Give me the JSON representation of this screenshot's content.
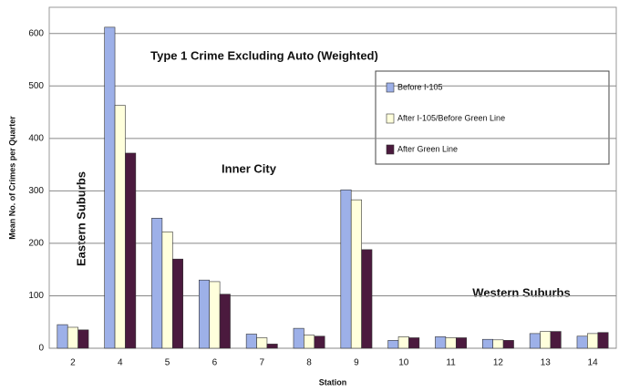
{
  "chart_data": {
    "type": "bar",
    "annotations": [
      "Type 1 Crime Excluding Auto (Weighted)",
      "Inner City",
      "Eastern Suburbs",
      "Western Suburbs"
    ],
    "x_label": "Station",
    "y_label": "Mean No. of Crimes per Quarter",
    "categories": [
      "2",
      "4",
      "5",
      "6",
      "7",
      "8",
      "9",
      "10",
      "11",
      "12",
      "13",
      "14"
    ],
    "series": [
      {
        "name": "Before I-105",
        "color": "#9db0e8",
        "values": [
          45,
          612,
          248,
          130,
          27,
          38,
          302,
          15,
          22,
          17,
          28,
          23
        ]
      },
      {
        "name": "After I-105/Before Green Line",
        "color": "#ffffdc",
        "values": [
          40,
          463,
          222,
          127,
          20,
          25,
          283,
          22,
          20,
          16,
          32,
          28
        ]
      },
      {
        "name": "After Green Line",
        "color": "#4b1a3e",
        "values": [
          35,
          372,
          170,
          103,
          8,
          23,
          188,
          20,
          20,
          15,
          32,
          30
        ]
      }
    ],
    "ylim": [
      0,
      650
    ],
    "yticks": [
      0,
      100,
      200,
      300,
      400,
      500,
      600
    ],
    "grid": true
  }
}
